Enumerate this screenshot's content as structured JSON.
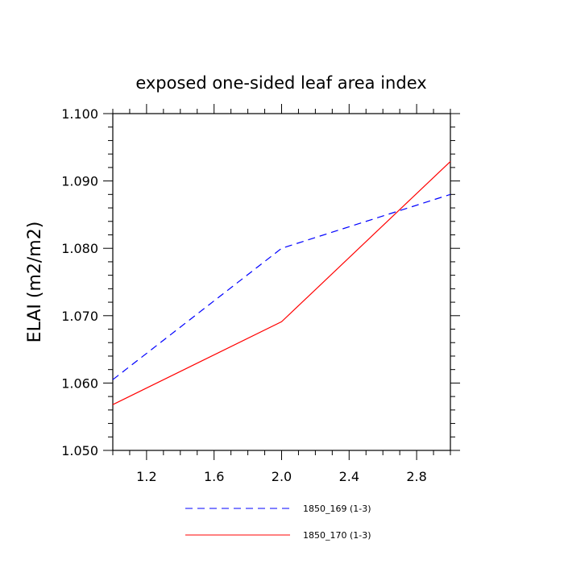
{
  "chart_data": {
    "type": "line",
    "title": "exposed one-sided leaf area index",
    "xlabel": "",
    "ylabel": "ELAI  (m2/m2)",
    "xlim": [
      1.0,
      3.0
    ],
    "ylim": [
      1.05,
      1.1
    ],
    "x_ticks": [
      1.2,
      1.6,
      2.0,
      2.4,
      2.8
    ],
    "x_tick_labels": [
      "1.2",
      "1.6",
      "2.0",
      "2.4",
      "2.8"
    ],
    "y_ticks": [
      1.05,
      1.06,
      1.07,
      1.08,
      1.09,
      1.1
    ],
    "y_tick_labels": [
      "1.050",
      "1.060",
      "1.070",
      "1.080",
      "1.090",
      "1.100"
    ],
    "grid": false,
    "legend_position": "bottom",
    "series": [
      {
        "name": "1850_169 (1-3)",
        "color": "#0000ff",
        "dash": "dashed",
        "x": [
          1,
          2,
          3
        ],
        "values": [
          1.0605,
          1.08,
          1.088
        ]
      },
      {
        "name": "1850_170 (1-3)",
        "color": "#ff0000",
        "dash": "solid",
        "x": [
          1,
          2,
          3
        ],
        "values": [
          1.0568,
          1.0691,
          1.0929
        ]
      }
    ]
  }
}
